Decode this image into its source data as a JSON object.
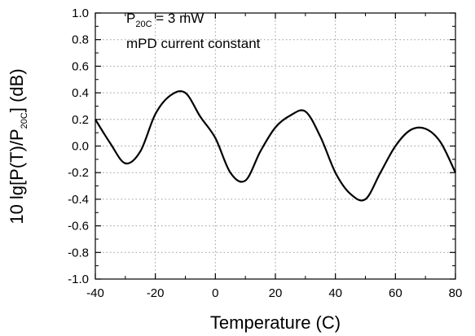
{
  "chart_data": {
    "type": "line",
    "title": "",
    "xlabel": "Temperature (C)",
    "ylabel": {
      "main": "10 lg[P(T)/P",
      "sub": "20C",
      "tail": "] (dB)"
    },
    "xlim": [
      -40,
      80
    ],
    "ylim": [
      -1.0,
      1.0
    ],
    "x_ticks": [
      "-40",
      "-20",
      "0",
      "20",
      "40",
      "60",
      "80"
    ],
    "y_ticks": [
      "-1.0",
      "-0.8",
      "-0.6",
      "-0.4",
      "-0.2",
      "0.0",
      "0.2",
      "0.4",
      "0.6",
      "0.8",
      "1.0"
    ],
    "grid": "dotted",
    "annotations": {
      "line1_prefix": "P",
      "line1_sub": "20C",
      "line1_suffix": " = 3 mW",
      "line2": "mPD current constant"
    },
    "series": [
      {
        "color": "#000000",
        "x": [
          -40,
          -35,
          -30,
          -25,
          -20,
          -15,
          -10,
          -5,
          0,
          5,
          10,
          15,
          20,
          25,
          30,
          35,
          40,
          45,
          50,
          55,
          60,
          65,
          70,
          75,
          80
        ],
        "y": [
          0.2,
          0.02,
          -0.13,
          -0.04,
          0.24,
          0.38,
          0.4,
          0.22,
          0.06,
          -0.2,
          -0.26,
          -0.04,
          0.14,
          0.23,
          0.26,
          0.07,
          -0.2,
          -0.36,
          -0.4,
          -0.2,
          0.0,
          0.12,
          0.13,
          0.03,
          -0.2
        ]
      }
    ]
  }
}
